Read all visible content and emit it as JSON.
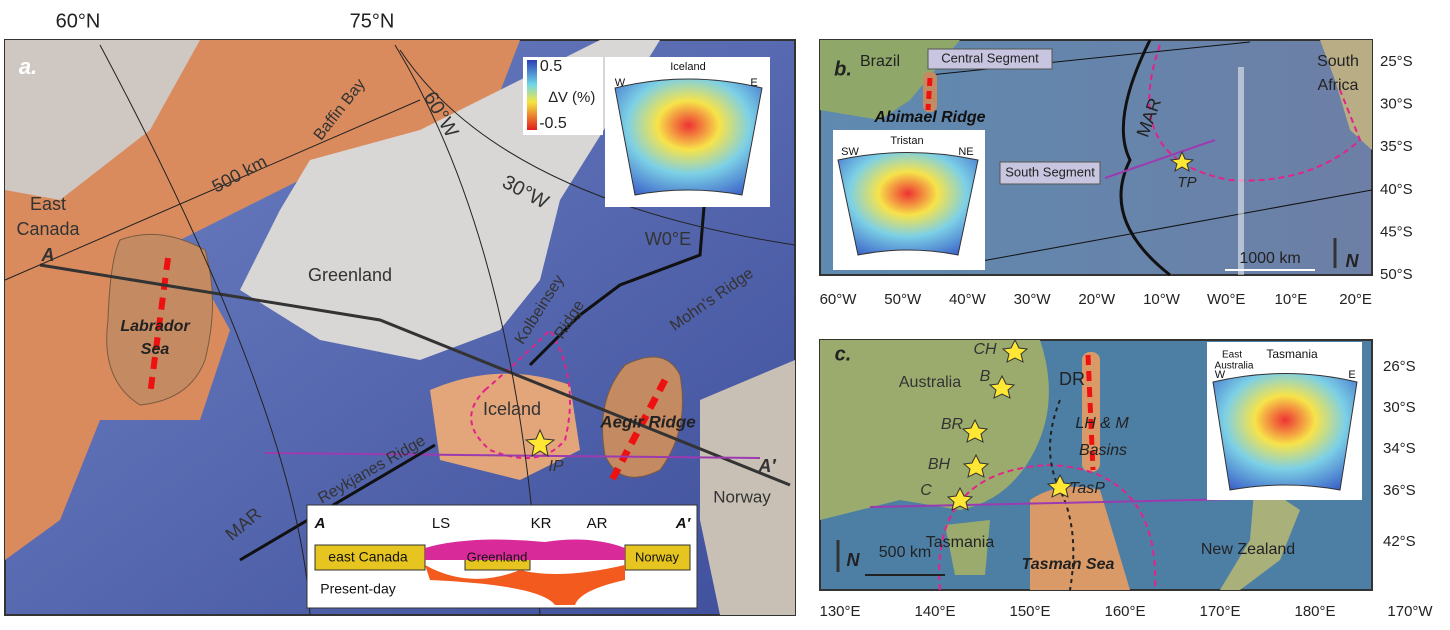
{
  "panel_a": {
    "letter": "a.",
    "lat_labels": [
      "60°N",
      "75°N"
    ],
    "lon_labels": [
      "60°W",
      "30°W",
      "W0°E"
    ],
    "baffin_bay": "Baffin Bay",
    "scale": "500 km",
    "east_canada": [
      "East",
      "Canada"
    ],
    "profile_start": "A",
    "labrador_sea": [
      "Labrador",
      "Sea"
    ],
    "greenland": "Greenland",
    "kolbeinsey_ridge": [
      "Kolbeinsey",
      "Ridge"
    ],
    "mohns_ridge": "Mohn's Ridge",
    "iceland": "Iceland",
    "ip": "IP",
    "aegir_ridge": "Aegir Ridge",
    "reykjanes_ridge": "Reykjanes Ridge",
    "mar": "MAR",
    "profile_end": "A′",
    "norway": "Norway",
    "tomography": {
      "scale_max": "0.5",
      "scale_label": "∆V (%)",
      "scale_min": "-0.5",
      "title": "Iceland",
      "west": "W",
      "east": "E"
    },
    "cross_section": {
      "start": "A",
      "end": "A′",
      "markers": [
        "LS",
        "KR",
        "AR"
      ],
      "blocks": [
        "east Canada",
        "Greenland",
        "Norway"
      ],
      "caption": "Present-day"
    }
  },
  "panel_b": {
    "letter": "b.",
    "brazil": "Brazil",
    "central_segment": "Central Segment",
    "south_africa": [
      "South",
      "Africa"
    ],
    "abimael_ridge": "Abimael Ridge",
    "mar": "MAR",
    "south_segment": "South Segment",
    "tp": "TP",
    "scale": "1000 km",
    "north": "N",
    "tomography": {
      "west": "SW",
      "title": "Tristan",
      "east": "NE"
    },
    "lat_ticks": [
      "25°S",
      "30°S",
      "35°S",
      "40°S",
      "45°S",
      "50°S"
    ],
    "lon_ticks": [
      "60°W",
      "50°W",
      "40°W",
      "30°W",
      "20°W",
      "10°W",
      "W0°E",
      "10°E",
      "20°E"
    ]
  },
  "panel_c": {
    "letter": "c.",
    "sites": [
      "CH",
      "B",
      "BR",
      "BH",
      "C"
    ],
    "australia": "Australia",
    "dr": "DR",
    "lhm_basins": [
      "LH & M",
      "Basins"
    ],
    "tasp": "TasP",
    "tasmania": "Tasmania",
    "tasman_sea": "Tasman Sea",
    "new_zealand": "New Zealand",
    "scale": "500 km",
    "north": "N",
    "tomography": {
      "region": [
        "East",
        "Australia"
      ],
      "title": "Tasmania",
      "west": "W",
      "east": "E"
    },
    "lat_ticks": [
      "26°S",
      "30°S",
      "34°S",
      "36°S",
      "42°S"
    ],
    "lon_ticks": [
      "130°E",
      "140°E",
      "150°E",
      "160°E",
      "170°E",
      "180°E",
      "170°W"
    ]
  }
}
